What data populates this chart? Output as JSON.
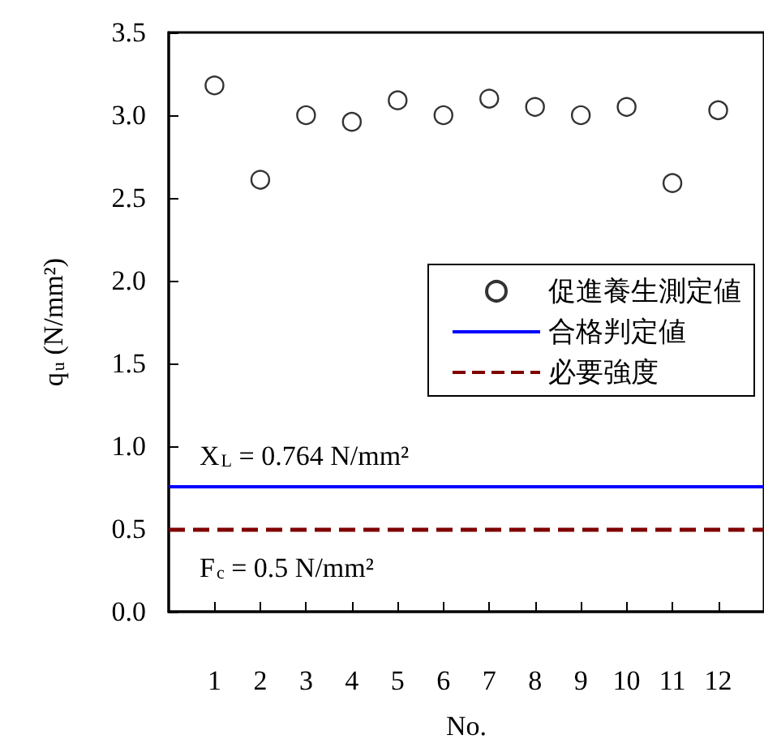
{
  "chart_data": {
    "type": "scatter",
    "xlabel": "No.",
    "ylabel": "q$_{u}$ (N/mm²)",
    "x": [
      1,
      2,
      3,
      4,
      5,
      6,
      7,
      8,
      9,
      10,
      11,
      12
    ],
    "series": [
      {
        "name": "促進養生測定値",
        "color": "#000000",
        "values": [
          3.18,
          2.61,
          3.0,
          2.96,
          3.09,
          3.0,
          3.1,
          3.05,
          3.0,
          3.05,
          2.59,
          3.03
        ]
      }
    ],
    "marker": "circle",
    "ref_lines": [
      {
        "axis": "y",
        "value": 0.764,
        "label": "合格判定値",
        "color": "#0000ff",
        "line_style": "solid"
      },
      {
        "axis": "y",
        "value": 0.5,
        "label": "必要強度",
        "color": "#800000",
        "line_style": "dashed"
      }
    ],
    "annotations": [
      "X$_{L}$ = 0.764 N/mm²",
      "F$_{c}$ = 0.5 N/mm²"
    ],
    "xlim": [
      0,
      13
    ],
    "xticks": [
      1,
      2,
      3,
      4,
      5,
      6,
      7,
      8,
      9,
      10,
      11,
      12
    ],
    "ylim": [
      0,
      3.5
    ],
    "yticks": [
      {
        "value": 0,
        "label": "0.0"
      },
      {
        "value": 0.5,
        "label": "0.5"
      },
      {
        "value": 1,
        "label": "1.0"
      },
      {
        "value": 1.5,
        "label": "1.5"
      },
      {
        "value": 2,
        "label": "2.0"
      },
      {
        "value": 2.5,
        "label": "2.5"
      },
      {
        "value": 3,
        "label": "3.0"
      },
      {
        "value": 3.5,
        "label": "3.5"
      }
    ],
    "grid": false,
    "legend": "right"
  }
}
